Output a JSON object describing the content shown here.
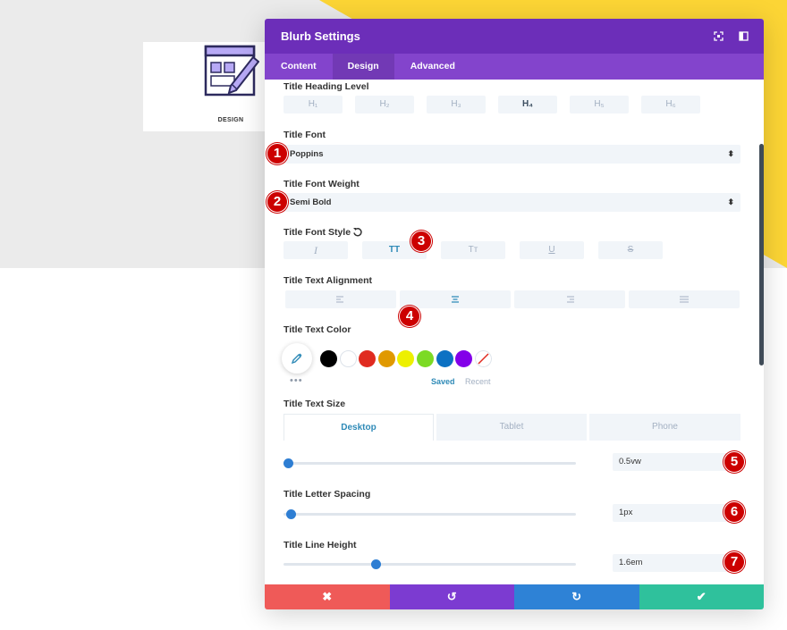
{
  "colors": {
    "header": "#6c2eb9",
    "tabs": "#8344cc",
    "accent": "#2e8ab7",
    "badge": "#cc0000",
    "cancel": "#ef5a58",
    "undo": "#7c3bd1",
    "redo": "#2e82d6",
    "save": "#2fc19c"
  },
  "preview": {
    "blurb_title": "DESIGN"
  },
  "modal": {
    "title": "Blurb Settings",
    "tabs": [
      {
        "label": "Content"
      },
      {
        "label": "Design"
      },
      {
        "label": "Advanced"
      }
    ],
    "active_tab": "Design"
  },
  "settings": {
    "heading_level": {
      "label": "Title Heading Level",
      "options": [
        {
          "label": "H₁"
        },
        {
          "label": "H₂"
        },
        {
          "label": "H₃"
        },
        {
          "label": "H₄"
        },
        {
          "label": "H₅"
        },
        {
          "label": "H₆"
        }
      ],
      "selected": "H₄"
    },
    "font": {
      "label": "Title Font",
      "value": "Poppins",
      "badge": "1"
    },
    "font_weight": {
      "label": "Title Font Weight",
      "value": "Semi Bold",
      "badge": "2"
    },
    "font_style": {
      "label": "Title Font Style",
      "badge": "3",
      "options": [
        {
          "label": "I"
        },
        {
          "label": "TT"
        },
        {
          "label": "Tт"
        },
        {
          "label": "U"
        },
        {
          "label": "S"
        }
      ],
      "selected": "TT"
    },
    "alignment": {
      "label": "Title Text Alignment",
      "badge": "4",
      "selected": "center"
    },
    "text_color": {
      "label": "Title Text Color",
      "saved_label": "Saved",
      "recent_label": "Recent",
      "swatches": [
        "#000000",
        "#ffffff",
        "#e02b20",
        "#e09900",
        "#edf000",
        "#7cda24",
        "#0c71c3",
        "#8300e9"
      ]
    },
    "text_size": {
      "label": "Title Text Size",
      "value": "0.5vw",
      "badge": "5",
      "level": 0.0,
      "devices": [
        {
          "label": "Desktop"
        },
        {
          "label": "Tablet"
        },
        {
          "label": "Phone"
        }
      ],
      "active_device": "Desktop"
    },
    "letter_spacing": {
      "label": "Title Letter Spacing",
      "value": "1px",
      "badge": "6",
      "level": 0.01
    },
    "line_height": {
      "label": "Title Line Height",
      "value": "1.6em",
      "badge": "7",
      "level": 0.31
    }
  },
  "footer": {
    "cancel": "✖",
    "undo": "↺",
    "redo": "↻",
    "save": "✔"
  }
}
